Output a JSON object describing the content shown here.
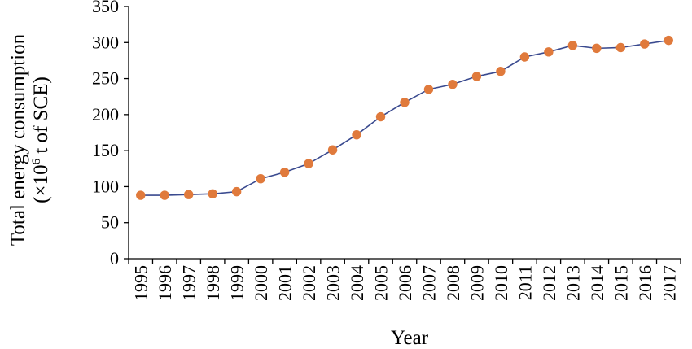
{
  "chart_data": {
    "type": "line",
    "xlabel": "Year",
    "ylabel_line1": "Total energy consumption",
    "ylabel_line2_prefix": "(×10",
    "ylabel_line2_superscript": "6",
    "ylabel_line2_suffix": " t of SCE)",
    "ylim": [
      0,
      350
    ],
    "yticks": [
      0,
      50,
      100,
      150,
      200,
      250,
      300,
      350
    ],
    "categories": [
      "1995",
      "1996",
      "1997",
      "1998",
      "1999",
      "2000",
      "2001",
      "2002",
      "2003",
      "2004",
      "2005",
      "2006",
      "2007",
      "2008",
      "2009",
      "2010",
      "2011",
      "2012",
      "2013",
      "2014",
      "2015",
      "2016",
      "2017"
    ],
    "series": [
      {
        "values": [
          88,
          88,
          89,
          90,
          93,
          111,
          120,
          132,
          151,
          172,
          197,
          217,
          235,
          242,
          253,
          260,
          280,
          287,
          296,
          292,
          293,
          298,
          303
        ],
        "line_color": "#3a4a8f",
        "marker_color": "#e07a3c"
      }
    ],
    "grid": false,
    "legend": "none"
  }
}
